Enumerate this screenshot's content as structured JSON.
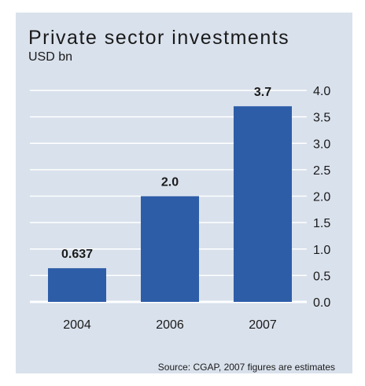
{
  "chart_data": {
    "type": "bar",
    "title": "Private sector investments",
    "ylabel": "USD bn",
    "xlabel": "",
    "categories": [
      "2004",
      "2006",
      "2007"
    ],
    "values": [
      0.637,
      2.0,
      3.7
    ],
    "data_labels": [
      "0.637",
      "2.0",
      "3.7"
    ],
    "ylim": [
      0,
      4.0
    ],
    "yticks": [
      "0.0",
      "0.5",
      "1.0",
      "1.5",
      "2.0",
      "2.5",
      "3.0",
      "3.5",
      "4.0"
    ],
    "ytick_values": [
      0,
      0.5,
      1.0,
      1.5,
      2.0,
      2.5,
      3.0,
      3.5,
      4.0
    ],
    "y_axis_side": "right",
    "grid": true,
    "legend": false,
    "bar_color": "#2e5da8",
    "gridline_color": "#ffffff",
    "background_color": "#d9e1ec"
  },
  "source_note": "Source: CGAP, 2007 figures are estimates"
}
